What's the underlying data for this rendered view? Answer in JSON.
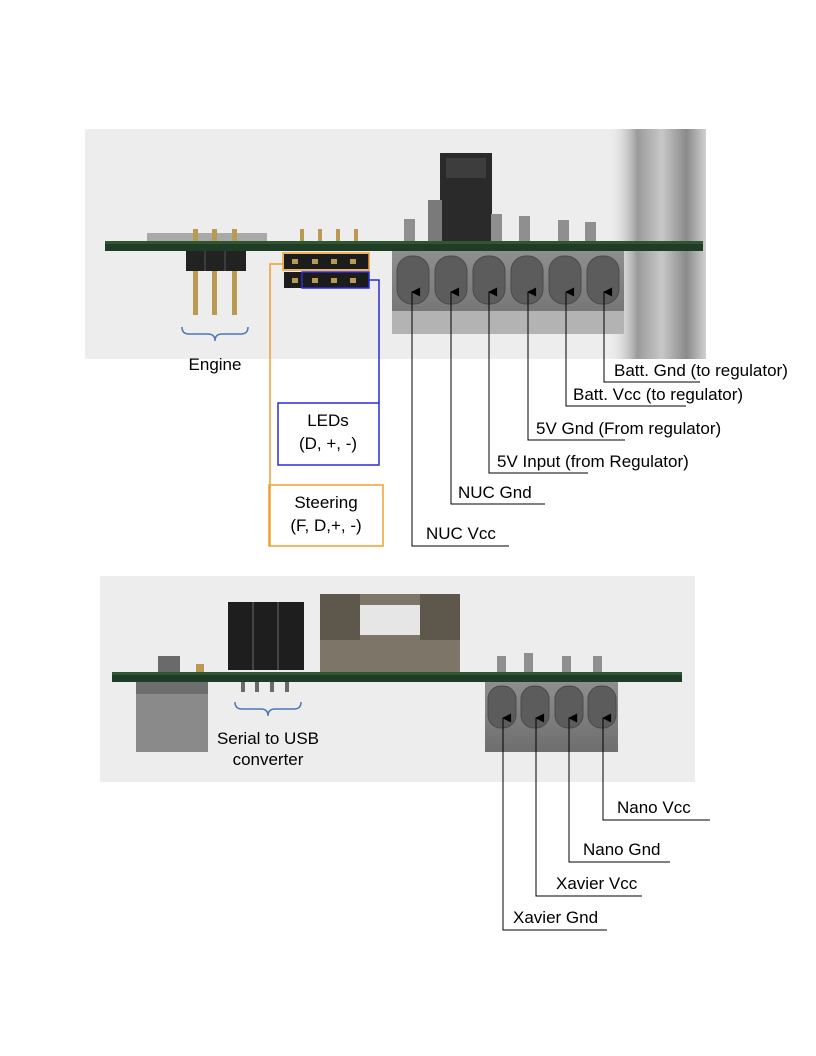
{
  "board_top": {
    "labels": {
      "engine": "Engine",
      "leds_line1": "LEDs",
      "leds_line2": "(D, +, -)",
      "steering_line1": "Steering",
      "steering_line2": "(F, D,+, -)",
      "batt_gnd": "Batt. Gnd (to  regulator)",
      "batt_vcc": "Batt. Vcc (to  regulator)",
      "gnd_5v": "5V Gnd (From regulator)",
      "input_5v": "5V Input (from Regulator)",
      "nuc_gnd": "NUC Gnd",
      "nuc_vcc": "NUC Vcc"
    },
    "colors": {
      "leds": "#2b2bd6",
      "steering": "#f0a030"
    }
  },
  "board_bottom": {
    "labels": {
      "serial_line1": "Serial to USB",
      "serial_line2": "converter",
      "nano_vcc": "Nano Vcc",
      "nano_gnd": "Nano Gnd",
      "xavier_vcc": "Xavier Vcc",
      "xavier_gnd": "Xavier Gnd"
    },
    "colors": {
      "brace": "#4a78b8"
    }
  }
}
